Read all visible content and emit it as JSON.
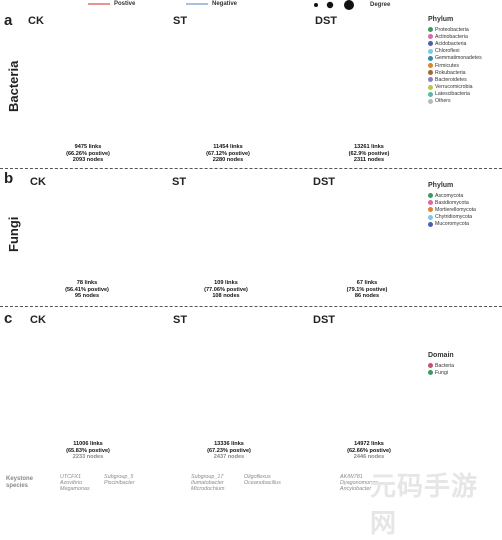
{
  "top_legend": {
    "positive": "Postive",
    "negative": "Negative",
    "degree": "Degree",
    "positive_color": "#d9534f",
    "negative_color": "#7a9acb"
  },
  "panels": {
    "a": {
      "letter": "a",
      "label": "Bacteria",
      "conditions": [
        {
          "name": "CK",
          "links": "9475 links",
          "positive": "(66.26% postive)",
          "nodes": "2093 nodes"
        },
        {
          "name": "ST",
          "links": "11454 links",
          "positive": "(67.12% postive)",
          "nodes": "2280 nodes"
        },
        {
          "name": "DST",
          "links": "13261 links",
          "positive": "(62.9% postive)",
          "nodes": "2311 nodes"
        }
      ],
      "legend": {
        "title": "Phylum",
        "items": [
          {
            "label": "Proteobacteria",
            "color": "#3a9b5c"
          },
          {
            "label": "Actinobacteria",
            "color": "#d96aa8"
          },
          {
            "label": "Acidobacteria",
            "color": "#4a5fb0"
          },
          {
            "label": "Chloroflexi",
            "color": "#7cc7e8"
          },
          {
            "label": "Gemmatimonadetes",
            "color": "#2f8fa3"
          },
          {
            "label": "Firmicutes",
            "color": "#e0822e"
          },
          {
            "label": "Rokubacteria",
            "color": "#9a6a2f"
          },
          {
            "label": "Bacteroidetes",
            "color": "#8b7fc4"
          },
          {
            "label": "Verrucomicrobia",
            "color": "#b8c84a"
          },
          {
            "label": "Latescibacteria",
            "color": "#5cb8a0"
          },
          {
            "label": "Others",
            "color": "#b9b9b9"
          }
        ]
      }
    },
    "b": {
      "letter": "b",
      "label": "Fungi",
      "conditions": [
        {
          "name": "CK",
          "links": "78 links",
          "positive": "(56.41% postive)",
          "nodes": "95 nodes"
        },
        {
          "name": "ST",
          "links": "109 links",
          "positive": "(77.06% postive)",
          "nodes": "108 nodes"
        },
        {
          "name": "DST",
          "links": "67 links",
          "positive": "(79.1% postive)",
          "nodes": "86 nodes"
        }
      ],
      "legend": {
        "title": "Phylum",
        "items": [
          {
            "label": "Ascomycota",
            "color": "#3a9b5c"
          },
          {
            "label": "Basidiomycota",
            "color": "#d96aa8"
          },
          {
            "label": "Mortierellomycota",
            "color": "#e0822e"
          },
          {
            "label": "Chytridiomycota",
            "color": "#7cc7e8"
          },
          {
            "label": "Mucoromycota",
            "color": "#4a5fb0"
          }
        ]
      }
    },
    "c": {
      "letter": "c",
      "conditions": [
        {
          "name": "CK",
          "links": "11006 links",
          "positive": "(65.83% postive)",
          "nodes": "2233 nodes"
        },
        {
          "name": "ST",
          "links": "13336 links",
          "positive": "(67.23% postive)",
          "nodes": "2437 nodes"
        },
        {
          "name": "DST",
          "links": "14972 links",
          "positive": "(62.66% postive)",
          "nodes": "2446 nodes"
        }
      ],
      "legend": {
        "title": "Domain",
        "items": [
          {
            "label": "Bacteria",
            "color": "#c4526e"
          },
          {
            "label": "Fungi",
            "color": "#3a9b5c"
          }
        ]
      },
      "keystone": {
        "label": "Keystone species",
        "groups": [
          [
            "UTCFX1",
            "Azovibrio",
            "Megamonas"
          ],
          [
            "Subgroup_5",
            "Piscinibacter"
          ],
          [
            "Subgroup_17",
            "Ilumatobacter",
            "Microdochium"
          ],
          [
            "Oligoflexus",
            "Oceanobacillus"
          ],
          [
            "AKIW781",
            "Dyagonomonas",
            "Ancylobacter"
          ]
        ]
      }
    }
  },
  "watermark": "元码手游网"
}
